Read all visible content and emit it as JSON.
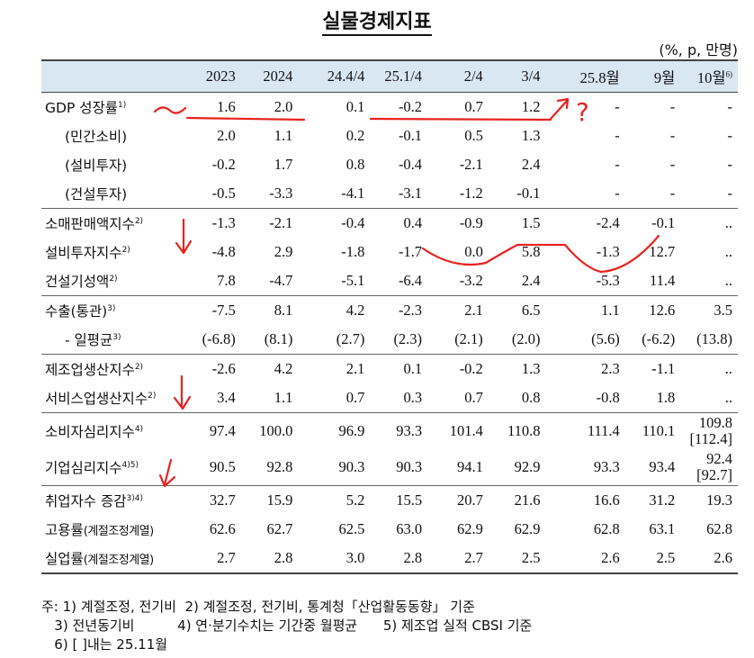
{
  "title": "실물경제지표",
  "unit": "(%, p, 만명)",
  "columns": [
    "2023",
    "2024",
    "24.4/4",
    "25.1/4",
    "2/4",
    "3/4",
    "25.8월",
    "9월",
    "10월"
  ],
  "column_notes": [
    "",
    "",
    "",
    "",
    "",
    "",
    "",
    "",
    "6)"
  ],
  "rows": [
    {
      "label": "GDP 성장률",
      "note": "1)",
      "values": [
        "1.6",
        "2.0",
        "0.1",
        "-0.2",
        "0.7",
        "1.2",
        "-",
        "-",
        "-"
      ]
    },
    {
      "label": "(민간소비)",
      "note": "",
      "values": [
        "2.0",
        "1.1",
        "0.2",
        "-0.1",
        "0.5",
        "1.3",
        "-",
        "-",
        "-"
      ]
    },
    {
      "label": "(설비투자)",
      "note": "",
      "values": [
        "-0.2",
        "1.7",
        "0.8",
        "-0.4",
        "-2.1",
        "2.4",
        "-",
        "-",
        "-"
      ]
    },
    {
      "label": "(건설투자)",
      "note": "",
      "values": [
        "-0.5",
        "-3.3",
        "-4.1",
        "-3.1",
        "-1.2",
        "-0.1",
        "-",
        "-",
        "-"
      ]
    },
    {
      "label": "소매판매액지수",
      "note": "2)",
      "values": [
        "-1.3",
        "-2.1",
        "-0.4",
        "0.4",
        "-0.9",
        "1.5",
        "-2.4",
        "-0.1",
        ".."
      ]
    },
    {
      "label": "설비투자지수",
      "note": "2)",
      "values": [
        "-4.8",
        "2.9",
        "-1.8",
        "-1.7",
        "0.0",
        "5.8",
        "-1.3",
        "12.7",
        ".."
      ]
    },
    {
      "label": "건설기성액",
      "note": "2)",
      "values": [
        "7.8",
        "-4.7",
        "-5.1",
        "-6.4",
        "-3.2",
        "2.4",
        "-5.3",
        "11.4",
        ".."
      ]
    },
    {
      "label": "수출(통관)",
      "note": "3)",
      "values": [
        "-7.5",
        "8.1",
        "4.2",
        "-2.3",
        "2.1",
        "6.5",
        "1.1",
        "12.6",
        "3.5"
      ]
    },
    {
      "label": "- 일평균",
      "note": "3)",
      "values": [
        "(-6.8)",
        "(8.1)",
        "(2.7)",
        "(2.3)",
        "(2.1)",
        "(2.0)",
        "(5.6)",
        "(-6.2)",
        "(13.8)"
      ]
    },
    {
      "label": "제조업생산지수",
      "note": "2)",
      "values": [
        "-2.6",
        "4.2",
        "2.1",
        "0.1",
        "-0.2",
        "1.3",
        "2.3",
        "-1.1",
        ".."
      ]
    },
    {
      "label": "서비스업생산지수",
      "note": "2)",
      "values": [
        "3.4",
        "1.1",
        "0.7",
        "0.3",
        "0.7",
        "0.8",
        "-0.8",
        "1.8",
        ".."
      ]
    },
    {
      "label": "소비자심리지수",
      "note": "4)",
      "values": [
        "97.4",
        "100.0",
        "96.9",
        "93.3",
        "101.4",
        "110.8",
        "111.4",
        "110.1",
        "109.8"
      ],
      "extra": "[112.4]"
    },
    {
      "label": "기업심리지수",
      "note": "4)5)",
      "values": [
        "90.5",
        "92.8",
        "90.3",
        "90.3",
        "94.1",
        "92.9",
        "93.3",
        "93.4",
        "92.4"
      ],
      "extra": "[92.7]"
    },
    {
      "label": "취업자수 증감",
      "note": "3)4)",
      "values": [
        "32.7",
        "15.9",
        "5.2",
        "15.5",
        "20.7",
        "21.6",
        "16.6",
        "31.2",
        "19.3"
      ]
    },
    {
      "label": "고용률",
      "sublabel": "(계절조정계열)",
      "note": "",
      "values": [
        "62.6",
        "62.7",
        "62.5",
        "63.0",
        "62.9",
        "62.9",
        "62.8",
        "63.1",
        "62.8"
      ]
    },
    {
      "label": "실업률",
      "sublabel": "(계절조정계열)",
      "note": "",
      "values": [
        "2.7",
        "2.8",
        "3.0",
        "2.8",
        "2.7",
        "2.5",
        "2.6",
        "2.5",
        "2.6"
      ]
    }
  ],
  "notes": [
    "주: 1) 계절조정, 전기비  2) 계절조정, 전기비, 통계청「산업활동동향」 기준",
    "   3) 전년동기비          4) 연·분기수치는 기간중 월평균      5) 제조업 실적 CBSI 기준",
    "   6) [ ]내는 25.11월"
  ],
  "annotations": {
    "handwritten_text": "?",
    "ink_color": "#e8231f"
  }
}
